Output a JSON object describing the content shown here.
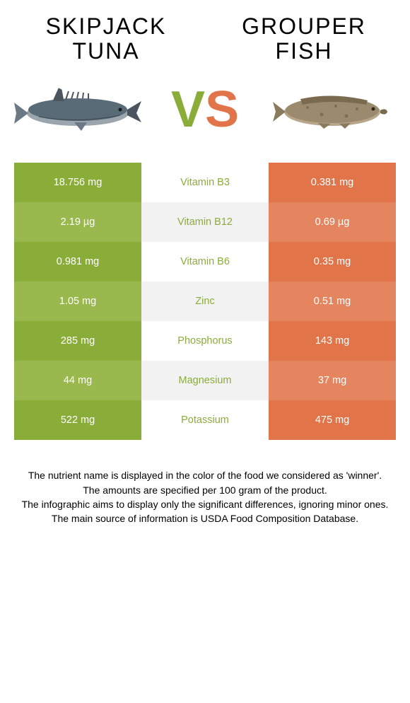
{
  "left_food": {
    "line1": "Skipjack",
    "line2": "tuna"
  },
  "right_food": {
    "line1": "grouper",
    "line2": "fish"
  },
  "vs": {
    "v": "V",
    "s": "S"
  },
  "colors": {
    "left_primary": "#8aad3a",
    "left_alt": "#99b84d",
    "right_primary": "#e2744a",
    "right_alt": "#e58560",
    "mid_alt_bg": "#f2f2f2",
    "mid_bg": "#ffffff",
    "mid_text_left": "#8aad3a",
    "mid_text_right": "#e2744a"
  },
  "rows": [
    {
      "left": "18.756 mg",
      "label": "Vitamin B3",
      "right": "0.381 mg",
      "winner": "left"
    },
    {
      "left": "2.19 µg",
      "label": "Vitamin B12",
      "right": "0.69 µg",
      "winner": "left"
    },
    {
      "left": "0.981 mg",
      "label": "Vitamin B6",
      "right": "0.35 mg",
      "winner": "left"
    },
    {
      "left": "1.05 mg",
      "label": "Zinc",
      "right": "0.51 mg",
      "winner": "left"
    },
    {
      "left": "285 mg",
      "label": "Phosphorus",
      "right": "143 mg",
      "winner": "left"
    },
    {
      "left": "44 mg",
      "label": "Magnesium",
      "right": "37 mg",
      "winner": "left"
    },
    {
      "left": "522 mg",
      "label": "Potassium",
      "right": "475 mg",
      "winner": "left"
    }
  ],
  "footer": {
    "l1": "The nutrient name is displayed in the color of the food we considered as 'winner'.",
    "l2": "The amounts are specified per 100 gram of the product.",
    "l3": "The infographic aims to display only the significant differences, ignoring minor ones.",
    "l4": "The main source of information is USDA Food Composition Database."
  }
}
